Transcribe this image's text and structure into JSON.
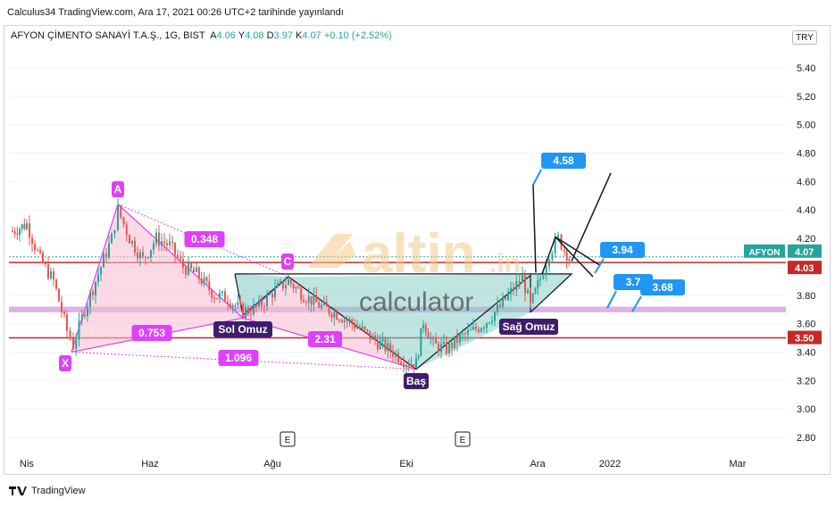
{
  "publisher": "Calculus34 TradingView.com, Ara 17, 2021 00:26 UTC+2 tarihinde yayınlandı",
  "legend": {
    "symbol": "AFYON ÇİMENTO SANAYİ T.A.Ş., 1G, BIST",
    "a_key": "A",
    "a_val": "4.06",
    "y_key": "Y",
    "y_val": "4.08",
    "d_key": "D",
    "d_val": "3.97",
    "k_key": "K",
    "k_val": "4.07",
    "change": "+0.10 (+2.52%)"
  },
  "currency": "TRY",
  "footer": "TradingView",
  "watermark": {
    "word1": "altin",
    "word2": ".in",
    "word3": "calculator"
  },
  "colors": {
    "up": "#26a69a",
    "down": "#ef5350",
    "pattern": "#e040fb",
    "red_line": "#c62828",
    "callout": "#2196f3",
    "purple_band": "#ce93d8"
  },
  "chart_data": {
    "type": "candlestick",
    "y_ticks": [
      "5.40",
      "5.20",
      "5.00",
      "4.80",
      "4.60",
      "4.40",
      "4.20",
      "4.00",
      "3.80",
      "3.60",
      "3.40",
      "3.20",
      "3.00",
      "2.80"
    ],
    "ylim": [
      2.7,
      5.55
    ],
    "x_ticks": [
      "Nis",
      "Haz",
      "Ağu",
      "Eki",
      "Ara",
      "2022",
      "Mar"
    ],
    "event_markers": [
      "E",
      "E"
    ],
    "price_tags": [
      {
        "text": "AFYON",
        "value": "4.07",
        "color": "#26a69a"
      },
      {
        "text": "",
        "value": "4.03",
        "color": "#c62828"
      },
      {
        "text": "",
        "value": "3.50",
        "color": "#c62828"
      }
    ],
    "horizontal_lines": [
      4.03,
      3.5
    ],
    "band": [
      3.68,
      3.72
    ],
    "harmonic_points": [
      "X",
      "A",
      "C"
    ],
    "harmonic_ratios": [
      "0.348",
      "0.753",
      "2.31",
      "1.096"
    ],
    "head_shoulders_labels": [
      "Sol Omuz",
      "Baş",
      "Sağ Omuz"
    ],
    "callouts": [
      "4.58",
      "3.94",
      "3.7",
      "3.68"
    ],
    "last_close": 4.07
  }
}
